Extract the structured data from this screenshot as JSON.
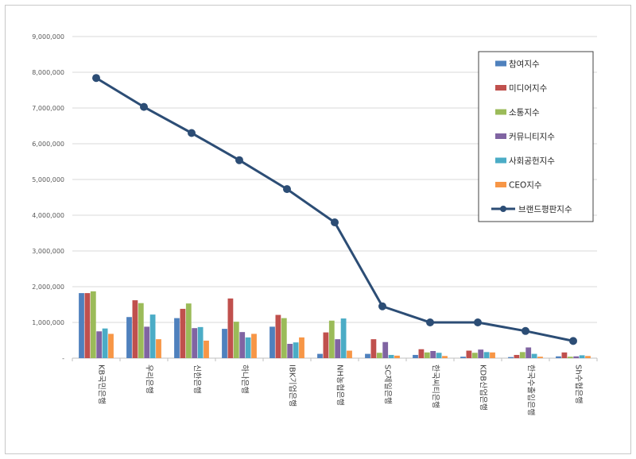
{
  "chart_data": {
    "type": "bar",
    "title": "",
    "xlabel": "",
    "ylabel": "",
    "ylim": [
      0,
      9000000
    ],
    "yticks": [
      0,
      1000000,
      2000000,
      3000000,
      4000000,
      5000000,
      6000000,
      7000000,
      8000000,
      9000000
    ],
    "ytick_labels": [
      "-",
      "1,000,000",
      "2,000,000",
      "3,000,000",
      "4,000,000",
      "5,000,000",
      "6,000,000",
      "7,000,000",
      "8,000,000",
      "9,000,000"
    ],
    "grid": true,
    "legend_position": "top-right",
    "categories": [
      "KB국민은행",
      "우리은행",
      "신한은행",
      "하나은행",
      "IBK기업은행",
      "NH농협은행",
      "SC제일은행",
      "한국씨티은행",
      "KDB산업은행",
      "한국수출입은행",
      "Sh수협은행"
    ],
    "series": [
      {
        "name": "참여지수",
        "kind": "bar",
        "color": "#4f81bd",
        "values": [
          1820000,
          1150000,
          1120000,
          820000,
          880000,
          120000,
          120000,
          90000,
          40000,
          30000,
          50000
        ]
      },
      {
        "name": "미디어지수",
        "kind": "bar",
        "color": "#c0504d",
        "values": [
          1820000,
          1620000,
          1380000,
          1670000,
          1210000,
          720000,
          530000,
          250000,
          210000,
          90000,
          160000
        ]
      },
      {
        "name": "소통지수",
        "kind": "bar",
        "color": "#9bbb59",
        "values": [
          1870000,
          1540000,
          1530000,
          1020000,
          1120000,
          1050000,
          150000,
          160000,
          150000,
          170000,
          40000
        ]
      },
      {
        "name": "커뮤니티지수",
        "kind": "bar",
        "color": "#8064a2",
        "values": [
          750000,
          880000,
          840000,
          730000,
          400000,
          530000,
          450000,
          200000,
          240000,
          300000,
          50000
        ]
      },
      {
        "name": "사회공헌지수",
        "kind": "bar",
        "color": "#4bacc6",
        "values": [
          830000,
          1220000,
          870000,
          580000,
          440000,
          1110000,
          90000,
          150000,
          170000,
          120000,
          80000
        ]
      },
      {
        "name": "CEO지수",
        "kind": "bar",
        "color": "#f79646",
        "values": [
          680000,
          530000,
          490000,
          680000,
          580000,
          210000,
          70000,
          60000,
          160000,
          40000,
          60000
        ]
      },
      {
        "name": "브랜드평판지수",
        "kind": "line",
        "color": "#2c4d75",
        "values": [
          7840000,
          7030000,
          6300000,
          5540000,
          4730000,
          3800000,
          1450000,
          1000000,
          1000000,
          760000,
          480000
        ]
      }
    ]
  }
}
